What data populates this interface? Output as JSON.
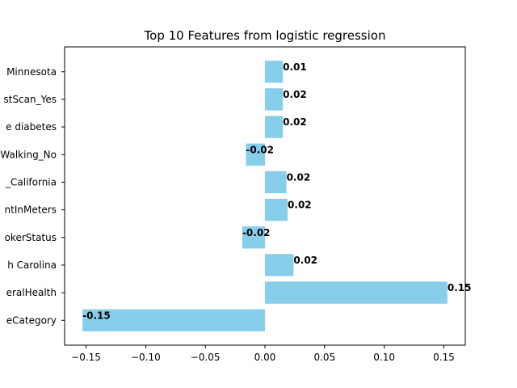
{
  "chart_data": {
    "type": "bar",
    "orientation": "horizontal",
    "title": "Top 10 Features from logistic regression",
    "xlabel": "",
    "ylabel": "",
    "categories": [
      "eCategory",
      "eralHealth",
      "h Carolina",
      "okerStatus",
      "ntInMeters",
      "_California",
      "Walking_No",
      "e diabetes",
      "stScan_Yes",
      "Minnesota"
    ],
    "values": [
      -0.153,
      0.153,
      0.024,
      -0.019,
      0.019,
      0.018,
      -0.016,
      0.015,
      0.015,
      0.015
    ],
    "data_labels": [
      "-0.15",
      "0.15",
      "0.02",
      "-0.02",
      "0.02",
      "0.02",
      "-0.02",
      "0.02",
      "0.02",
      "0.01"
    ],
    "xlim": [
      -0.168,
      0.168
    ],
    "xticks": [
      -0.15,
      -0.1,
      -0.05,
      0.0,
      0.05,
      0.1,
      0.15
    ],
    "xtick_labels": [
      "−0.15",
      "−0.10",
      "−0.05",
      "0.00",
      "0.05",
      "0.10",
      "0.15"
    ],
    "grid": false,
    "legend": "none",
    "bar_color": "#87ceeb"
  }
}
